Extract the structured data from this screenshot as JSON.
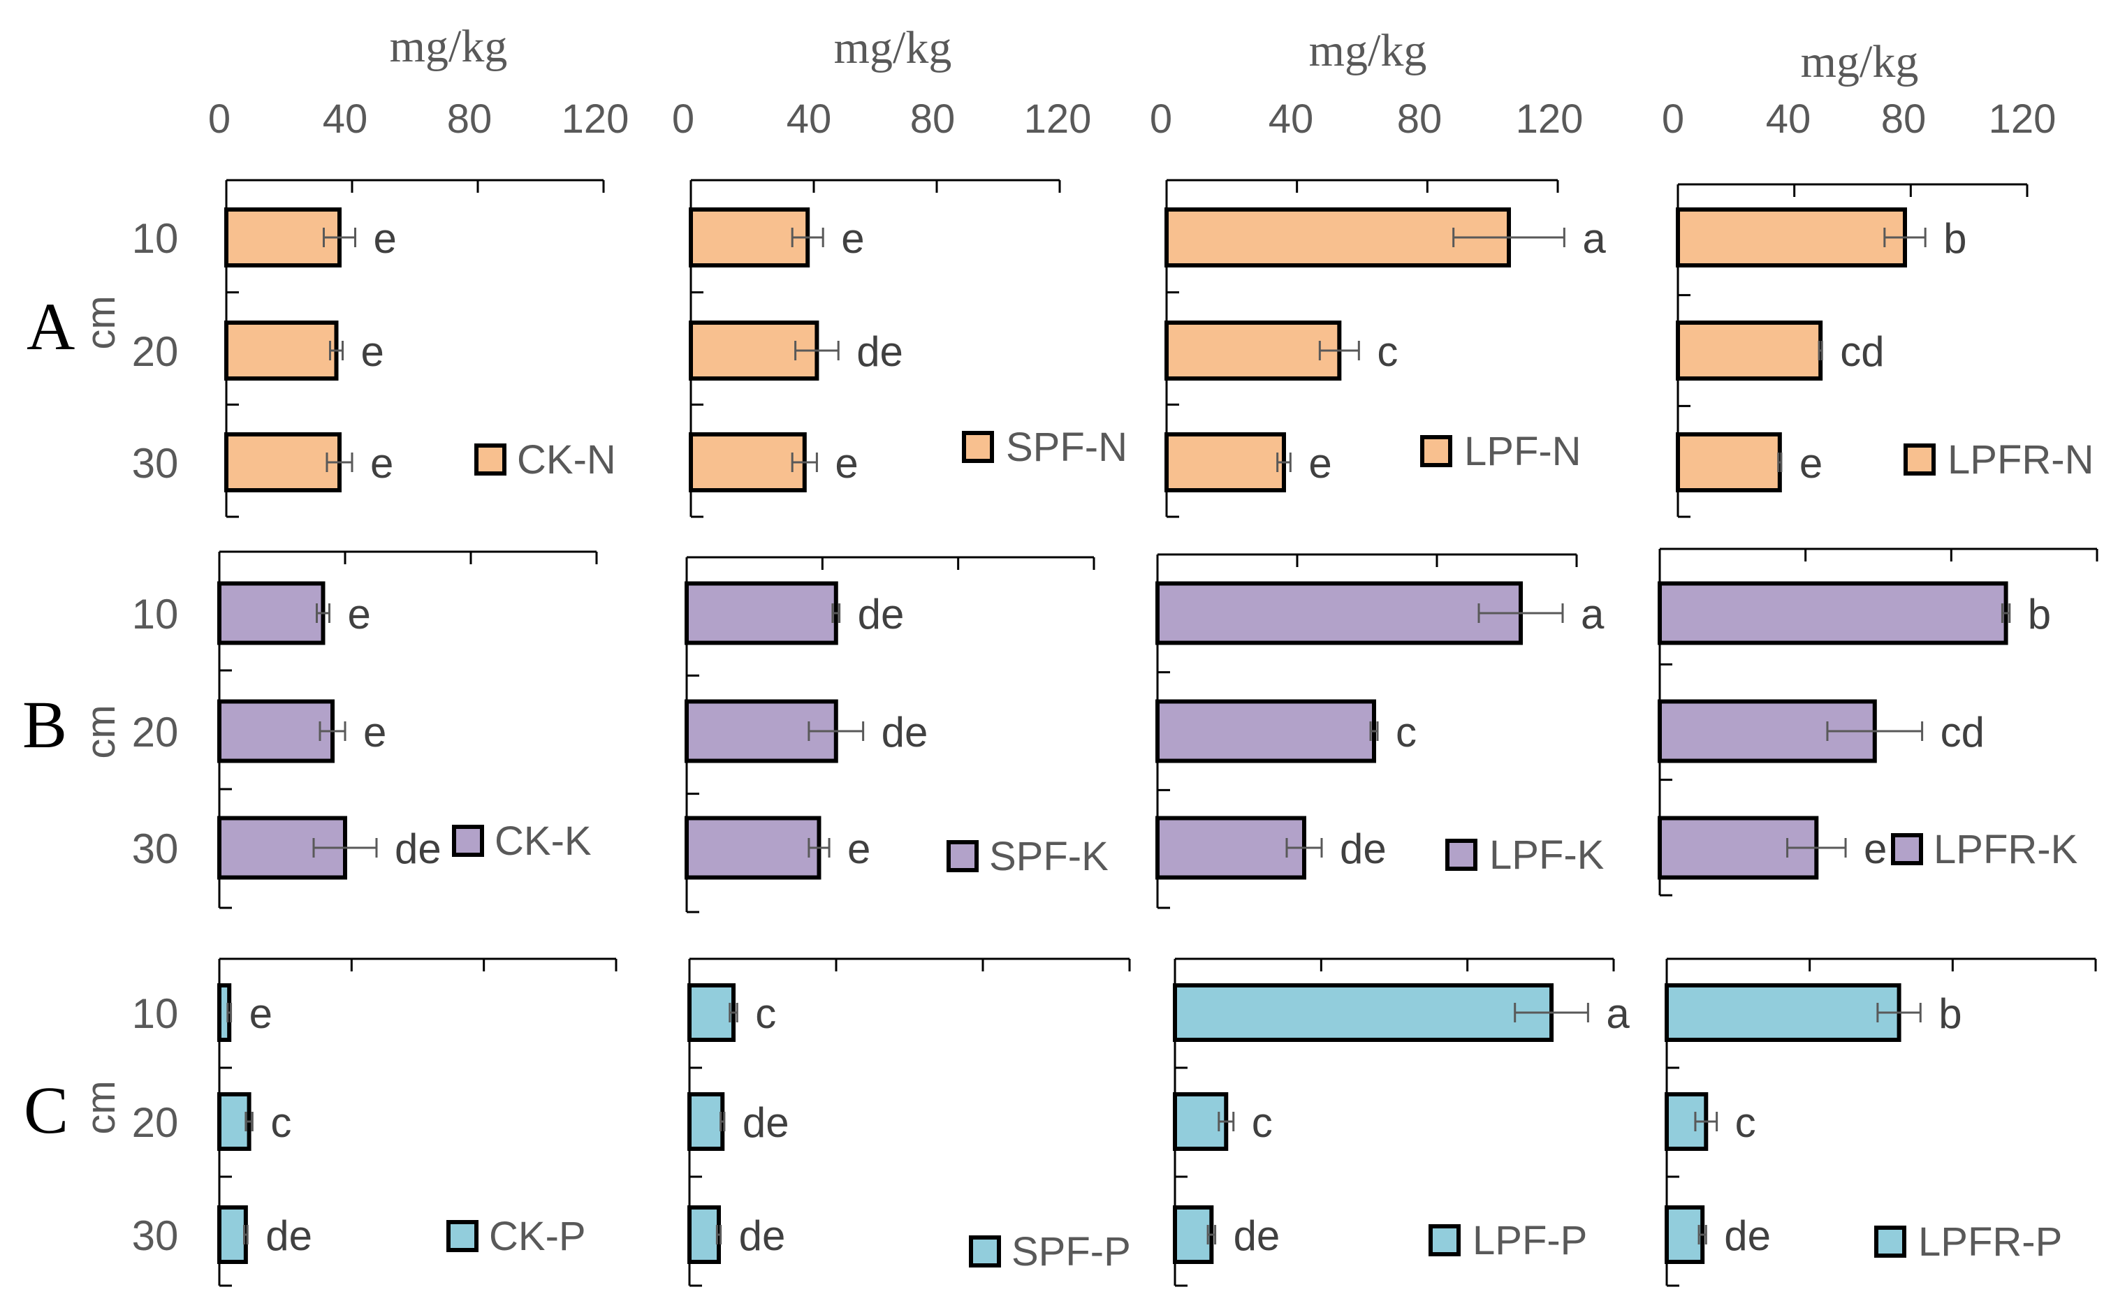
{
  "chart_data": [
    {
      "type": "bar",
      "title": "",
      "row_label": "A",
      "xlabel": "mg/kg",
      "ylabel": "cm",
      "color": "#F8C08F",
      "x_ticks": [
        "0",
        "40",
        "80",
        "120"
      ],
      "xlim": [
        0,
        120
      ],
      "categories": [
        "10",
        "20",
        "30"
      ],
      "panels": [
        {
          "legend": "CK-N",
          "values": [
            36,
            35,
            36
          ],
          "errors": [
            5,
            2,
            4
          ],
          "labels": [
            "e",
            "e",
            "e"
          ]
        },
        {
          "legend": "SPF-N",
          "values": [
            38,
            41,
            37
          ],
          "errors": [
            5,
            7,
            4
          ],
          "labels": [
            "e",
            "de",
            "e"
          ]
        },
        {
          "legend": "LPF-N",
          "values": [
            105,
            53,
            36
          ],
          "errors": [
            17,
            6,
            2
          ],
          "labels": [
            "a",
            "c",
            "e"
          ]
        },
        {
          "legend": "LPFR-N",
          "values": [
            78,
            49,
            35
          ],
          "errors": [
            7,
            0.5,
            0.5
          ],
          "labels": [
            "b",
            "cd",
            "e"
          ]
        }
      ]
    },
    {
      "type": "bar",
      "title": "",
      "row_label": "B",
      "xlabel": "",
      "ylabel": "cm",
      "color": "#B2A2C9",
      "xlim": [
        0,
        120
      ],
      "categories": [
        "10",
        "20",
        "30"
      ],
      "panels": [
        {
          "legend": "CK-K",
          "values": [
            33,
            36,
            40
          ],
          "errors": [
            2,
            4,
            10
          ],
          "labels": [
            "e",
            "e",
            "de"
          ]
        },
        {
          "legend": "SPF-K",
          "values": [
            44,
            44,
            39
          ],
          "errors": [
            1,
            8,
            3
          ],
          "labels": [
            "de",
            "de",
            "e"
          ]
        },
        {
          "legend": "LPF-K",
          "values": [
            104,
            62,
            42
          ],
          "errors": [
            12,
            1,
            5
          ],
          "labels": [
            "a",
            "c",
            "de"
          ]
        },
        {
          "legend": "LPFR-K",
          "values": [
            95,
            59,
            43
          ],
          "errors": [
            1,
            13,
            8
          ],
          "labels": [
            "b",
            "cd",
            "e"
          ]
        }
      ]
    },
    {
      "type": "bar",
      "title": "",
      "row_label": "C",
      "xlabel": "",
      "ylabel": "cm",
      "color": "#92CDDC",
      "xlim": [
        0,
        120
      ],
      "categories": [
        "10",
        "20",
        "30"
      ],
      "panels": [
        {
          "legend": "CK-P",
          "values": [
            3,
            9,
            8
          ],
          "errors": [
            0.5,
            1,
            0.5
          ],
          "labels": [
            "e",
            "c",
            "de"
          ]
        },
        {
          "legend": "SPF-P",
          "values": [
            12,
            9,
            8
          ],
          "errors": [
            1,
            0.5,
            0.5
          ],
          "labels": [
            "c",
            "de",
            "de"
          ]
        },
        {
          "legend": "LPF-P",
          "values": [
            103,
            14,
            10
          ],
          "errors": [
            10,
            2,
            1
          ],
          "labels": [
            "a",
            "c",
            "de"
          ]
        },
        {
          "legend": "LPFR-P",
          "values": [
            65,
            11,
            10
          ],
          "errors": [
            6,
            3,
            1
          ],
          "labels": [
            "b",
            "c",
            "de"
          ]
        }
      ]
    }
  ]
}
